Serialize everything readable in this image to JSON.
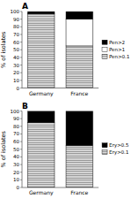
{
  "chart_data": [
    {
      "type": "bar",
      "stacked": true,
      "title": "A",
      "ylabel": "% of isolates",
      "categories": [
        "Germany",
        "France"
      ],
      "series": [
        {
          "name": "Pen>0.1",
          "color": "#dddddd",
          "values": [
            97,
            55
          ]
        },
        {
          "name": "Pen>1",
          "color": "#ffffff",
          "values": [
            0,
            35
          ]
        },
        {
          "name": "Pen>2",
          "color": "#000000",
          "values": [
            3,
            10
          ]
        }
      ],
      "ylim": [
        0,
        100
      ],
      "yticks": [
        0,
        10,
        20,
        30,
        40,
        50,
        60,
        70,
        80,
        90,
        100
      ],
      "grid": false,
      "legend": "right"
    },
    {
      "type": "bar",
      "stacked": true,
      "title": "B",
      "ylabel": "% of isolates",
      "categories": [
        "Germany",
        "France"
      ],
      "series": [
        {
          "name": "Ery>0.1",
          "color": "#dddddd",
          "values": [
            85,
            55
          ]
        },
        {
          "name": "Ery>0.5",
          "color": "#000000",
          "values": [
            15,
            45
          ]
        }
      ],
      "ylim": [
        0,
        100
      ],
      "yticks": [
        0,
        10,
        20,
        30,
        40,
        50,
        60,
        70,
        80,
        90,
        100
      ],
      "grid": false,
      "legend": "right"
    }
  ]
}
